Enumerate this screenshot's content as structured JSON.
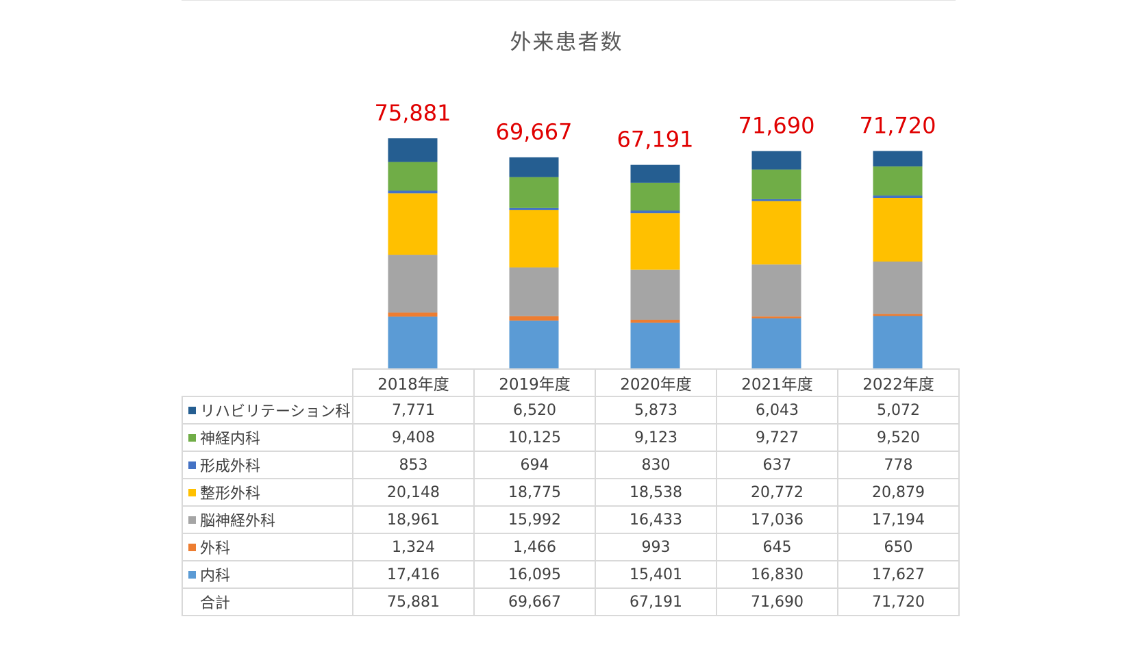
{
  "chart_data": {
    "type": "bar",
    "stacked": true,
    "title": "外来患者数",
    "categories": [
      "2018年度",
      "2019年度",
      "2020年度",
      "2021年度",
      "2022年度"
    ],
    "series": [
      {
        "name": "リハビリテーション科",
        "color": "#255e91",
        "values": [
          7771,
          6520,
          5873,
          6043,
          5072
        ],
        "display": [
          "7,771",
          "6,520",
          "5,873",
          "6,043",
          "5,072"
        ]
      },
      {
        "name": "神経内科",
        "color": "#70ad47",
        "values": [
          9408,
          10125,
          9123,
          9727,
          9520
        ],
        "display": [
          "9,408",
          "10,125",
          "9,123",
          "9,727",
          "9,520"
        ]
      },
      {
        "name": "形成外科",
        "color": "#4472c4",
        "values": [
          853,
          694,
          830,
          637,
          778
        ],
        "display": [
          "853",
          "694",
          "830",
          "637",
          "778"
        ]
      },
      {
        "name": "整形外科",
        "color": "#ffc000",
        "values": [
          20148,
          18775,
          18538,
          20772,
          20879
        ],
        "display": [
          "20,148",
          "18,775",
          "18,538",
          "20,772",
          "20,879"
        ]
      },
      {
        "name": "脳神経外科",
        "color": "#a5a5a5",
        "values": [
          18961,
          15992,
          16433,
          17036,
          17194
        ],
        "display": [
          "18,961",
          "15,992",
          "16,433",
          "17,036",
          "17,194"
        ]
      },
      {
        "name": "外科",
        "color": "#ed7d31",
        "values": [
          1324,
          1466,
          993,
          645,
          650
        ],
        "display": [
          "1,324",
          "1,466",
          "993",
          "645",
          "650"
        ]
      },
      {
        "name": "内科",
        "color": "#5b9bd5",
        "values": [
          17416,
          16095,
          15401,
          16830,
          17627
        ],
        "display": [
          "17,416",
          "16,095",
          "15,401",
          "16,830",
          "17,627"
        ]
      }
    ],
    "totals": {
      "label": "合計",
      "values": [
        75881,
        69667,
        67191,
        71690,
        71720
      ],
      "display": [
        "75,881",
        "69,667",
        "67,191",
        "71,690",
        "71,720"
      ]
    },
    "total_label_color": "#e00000",
    "xlabel": "",
    "ylabel": "",
    "ylim": [
      0,
      80000
    ],
    "grid": false,
    "legend": "data-table"
  }
}
